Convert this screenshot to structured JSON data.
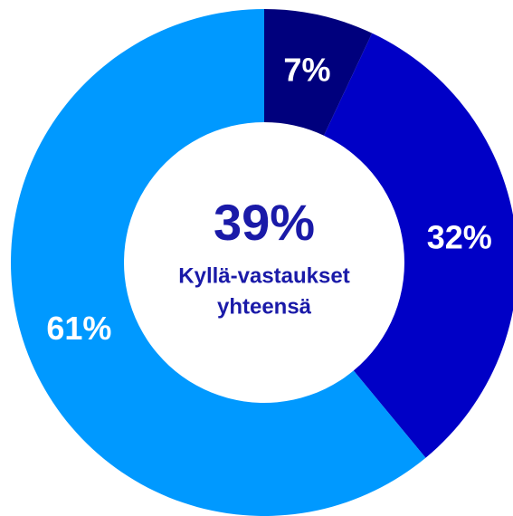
{
  "chart_data": {
    "type": "donut",
    "categories": [
      null,
      null,
      null
    ],
    "values": [
      7,
      32,
      61
    ],
    "value_labels": [
      "7%",
      "32%",
      "61%"
    ],
    "colors": [
      "#00007d",
      "#0000c6",
      "#0099ff"
    ],
    "center_label": "39%",
    "center_text": [
      "Kyllä-vastaukset",
      "yhteensä"
    ]
  }
}
